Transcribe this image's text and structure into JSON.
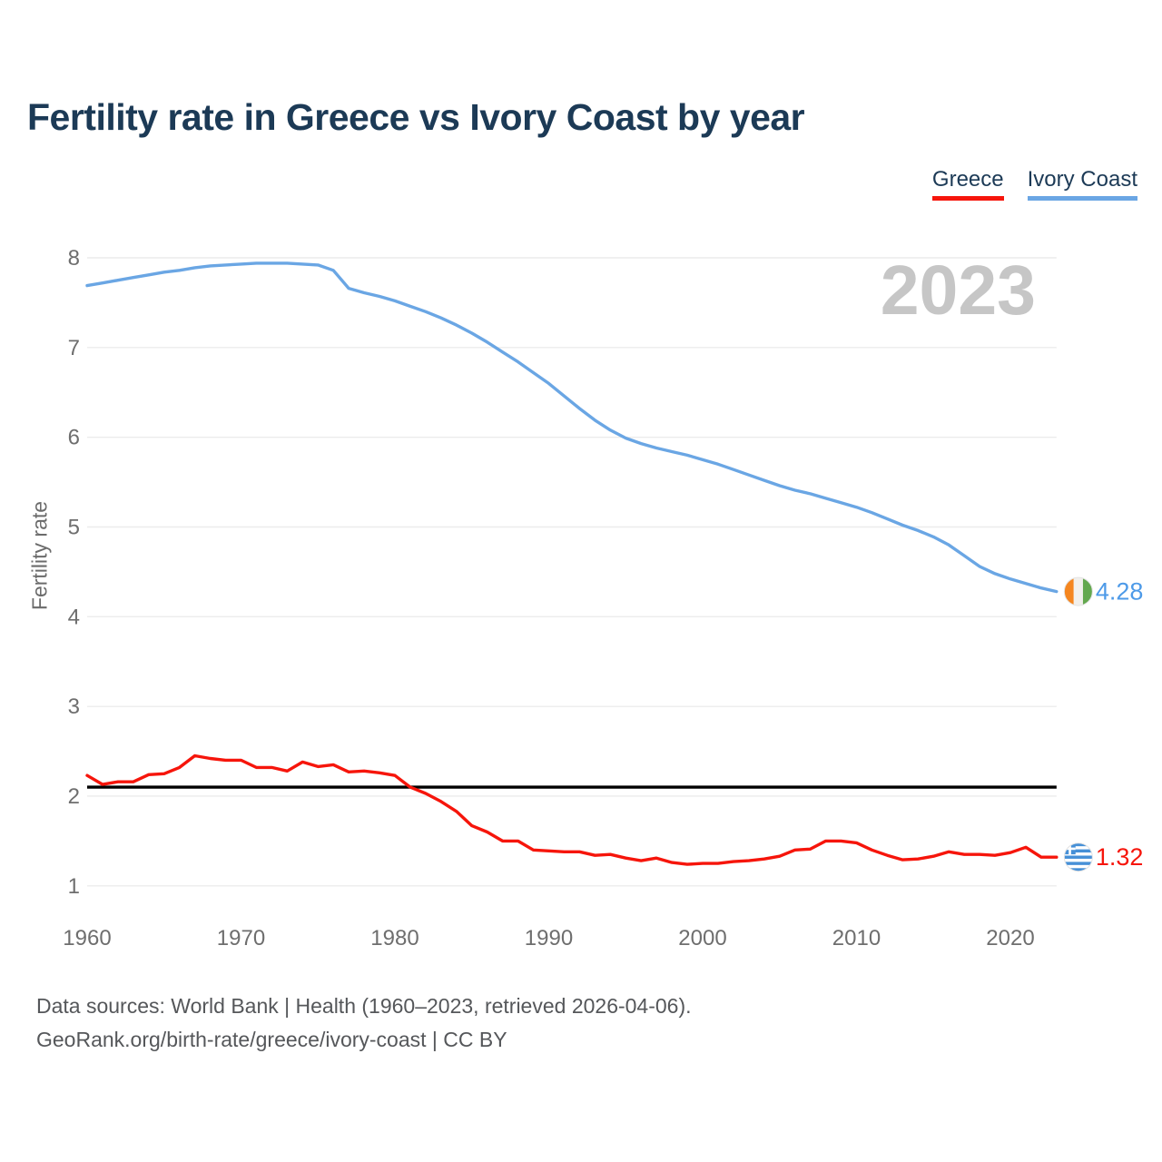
{
  "title": "Fertility rate in Greece vs Ivory Coast by year",
  "legend": [
    {
      "label": "Greece",
      "color": "#f6150b"
    },
    {
      "label": "Ivory Coast",
      "color": "#6aa6e4"
    }
  ],
  "watermark": "2023",
  "ylabel": "Fertility rate",
  "footer": {
    "line1": "Data sources: World Bank | Health (1960–2023, retrieved 2026-04-06).",
    "line2": "GeoRank.org/birth-rate/greece/ivory-coast | CC BY"
  },
  "chart_data": {
    "type": "line",
    "title": "Fertility rate in Greece vs Ivory Coast by year",
    "xlabel": "",
    "ylabel": "Fertility rate",
    "xlim": [
      1960,
      2023
    ],
    "ylim": [
      1,
      8
    ],
    "grid": true,
    "legend_position": "top-right",
    "watermark": "2023",
    "yticks": [
      1,
      2,
      3,
      4,
      5,
      6,
      7,
      8
    ],
    "xticks": [
      1960,
      1970,
      1980,
      1990,
      2000,
      2010,
      2020
    ],
    "reference_line": {
      "value": 2.1,
      "color": "#000000"
    },
    "x": [
      1960,
      1961,
      1962,
      1963,
      1964,
      1965,
      1966,
      1967,
      1968,
      1969,
      1970,
      1971,
      1972,
      1973,
      1974,
      1975,
      1976,
      1977,
      1978,
      1979,
      1980,
      1981,
      1982,
      1983,
      1984,
      1985,
      1986,
      1987,
      1988,
      1989,
      1990,
      1991,
      1992,
      1993,
      1994,
      1995,
      1996,
      1997,
      1998,
      1999,
      2000,
      2001,
      2002,
      2003,
      2004,
      2005,
      2006,
      2007,
      2008,
      2009,
      2010,
      2011,
      2012,
      2013,
      2014,
      2015,
      2016,
      2017,
      2018,
      2019,
      2020,
      2021,
      2022,
      2023
    ],
    "series": [
      {
        "name": "Ivory Coast",
        "color": "#6aa6e4",
        "label_color": "#4d9ae8",
        "end_label": "4.28",
        "flag": "ivory-coast",
        "values": [
          7.69,
          7.72,
          7.75,
          7.78,
          7.81,
          7.84,
          7.86,
          7.89,
          7.91,
          7.92,
          7.93,
          7.94,
          7.94,
          7.94,
          7.93,
          7.92,
          7.86,
          7.66,
          7.61,
          7.57,
          7.52,
          7.46,
          7.4,
          7.33,
          7.25,
          7.16,
          7.06,
          6.95,
          6.84,
          6.72,
          6.6,
          6.46,
          6.32,
          6.19,
          6.08,
          5.99,
          5.93,
          5.88,
          5.84,
          5.8,
          5.75,
          5.7,
          5.64,
          5.58,
          5.52,
          5.46,
          5.41,
          5.37,
          5.32,
          5.27,
          5.22,
          5.16,
          5.09,
          5.02,
          4.96,
          4.89,
          4.8,
          4.68,
          4.56,
          4.48,
          4.42,
          4.37,
          4.32,
          4.28
        ]
      },
      {
        "name": "Greece",
        "color": "#f6150b",
        "label_color": "#f6150b",
        "end_label": "1.32",
        "flag": "greece",
        "values": [
          2.23,
          2.13,
          2.16,
          2.16,
          2.24,
          2.25,
          2.32,
          2.45,
          2.42,
          2.4,
          2.4,
          2.32,
          2.32,
          2.28,
          2.38,
          2.33,
          2.35,
          2.27,
          2.28,
          2.26,
          2.23,
          2.1,
          2.03,
          1.94,
          1.83,
          1.67,
          1.6,
          1.5,
          1.5,
          1.4,
          1.39,
          1.38,
          1.38,
          1.34,
          1.35,
          1.31,
          1.28,
          1.31,
          1.26,
          1.24,
          1.25,
          1.25,
          1.27,
          1.28,
          1.3,
          1.33,
          1.4,
          1.41,
          1.5,
          1.5,
          1.48,
          1.4,
          1.34,
          1.29,
          1.3,
          1.33,
          1.38,
          1.35,
          1.35,
          1.34,
          1.37,
          1.43,
          1.32,
          1.32
        ]
      }
    ]
  }
}
